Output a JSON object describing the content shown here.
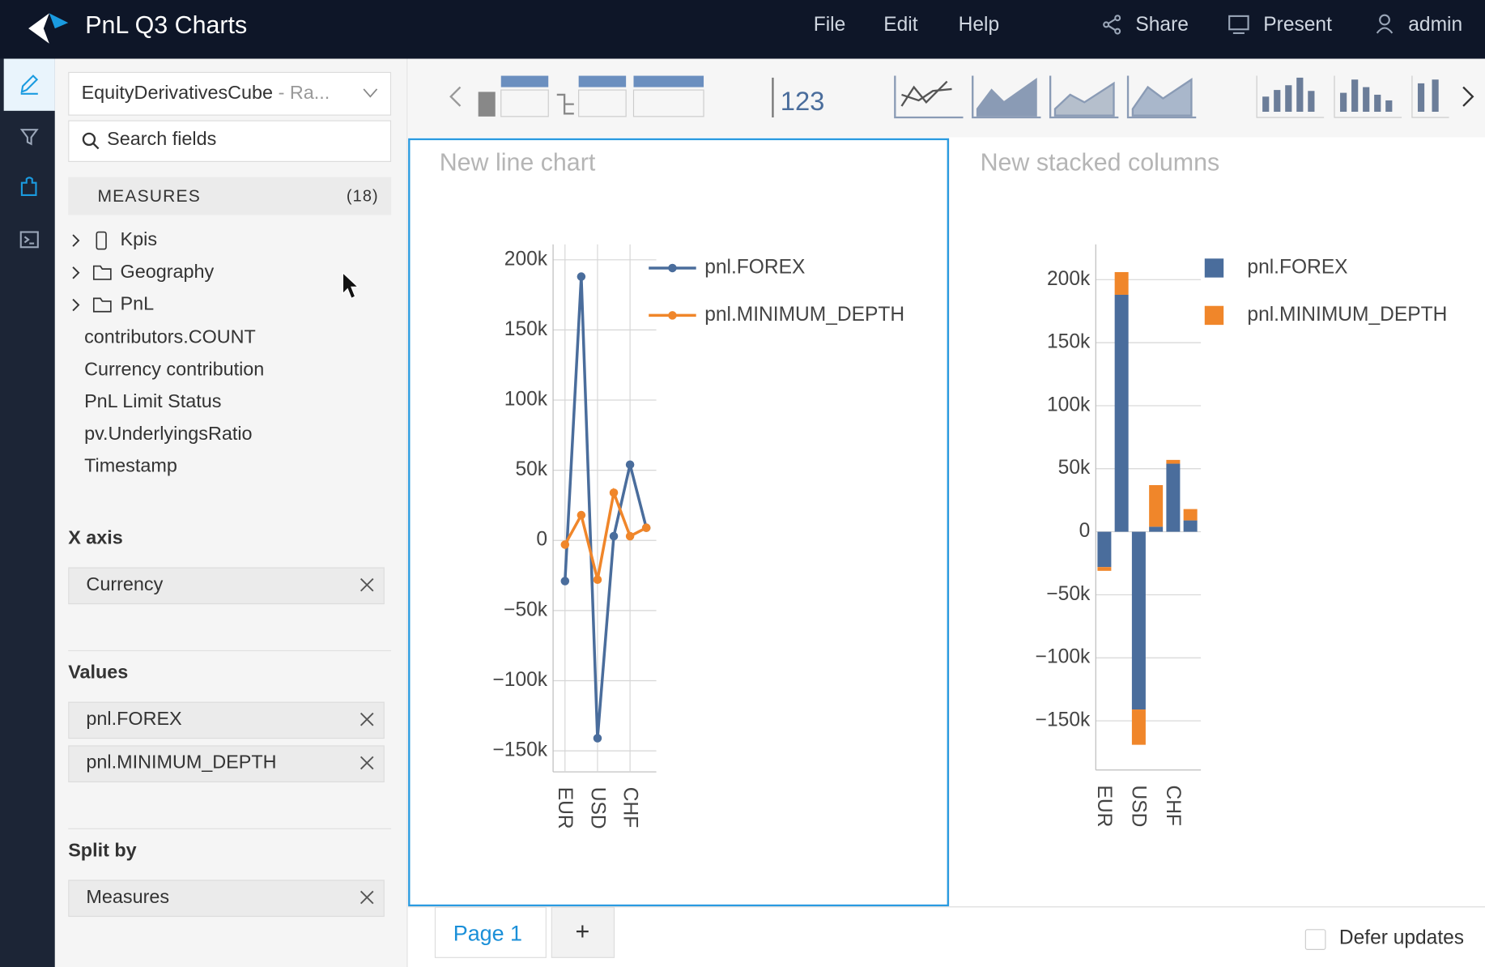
{
  "header": {
    "title": "PnL Q3 Charts",
    "menu": [
      "File",
      "Edit",
      "Help"
    ],
    "actions": [
      "Share",
      "Present",
      "admin"
    ]
  },
  "sidebar": {
    "cube": "EquityDerivativesCube",
    "cube_suffix": " - Ra...",
    "search_placeholder": "Search fields",
    "measures_label": "MEASURES",
    "measures_count": "(18)",
    "folders": [
      "Kpis",
      "Geography",
      "PnL"
    ],
    "fields": [
      "contributors.COUNT",
      "Currency contribution",
      "PnL Limit Status",
      "pv.UnderlyingsRatio",
      "Timestamp"
    ],
    "x_axis_label": "X axis",
    "x_axis": [
      "Currency"
    ],
    "values_label": "Values",
    "values": [
      "pnl.FOREX",
      "pnl.MINIMUM_DEPTH"
    ],
    "split_label": "Split by",
    "split": [
      "Measures"
    ]
  },
  "toolbar": {
    "number_icon": "123"
  },
  "chart_data": [
    {
      "type": "line",
      "title": "New line chart",
      "categories": [
        "EUR",
        null,
        "USD",
        null,
        "CHF",
        null
      ],
      "series": [
        {
          "name": "pnl.FOREX",
          "color": "#4a6d9c",
          "values": [
            -29000,
            188000,
            -141000,
            3000,
            54000,
            9000
          ]
        },
        {
          "name": "pnl.MINIMUM_DEPTH",
          "color": "#f0862a",
          "values": [
            -3000,
            18000,
            -28000,
            34000,
            3000,
            9000
          ]
        }
      ],
      "ylim": [
        -165000,
        211000
      ],
      "yticks": [
        {
          "value": -150000,
          "label": "−150k"
        },
        {
          "value": -100000,
          "label": "−100k"
        },
        {
          "value": -50000,
          "label": "−50k"
        },
        0,
        {
          "value": 50000,
          "label": "50k"
        },
        {
          "value": 100000,
          "label": "100k"
        },
        {
          "value": 150000,
          "label": "150k"
        },
        {
          "value": 200000,
          "label": "200k"
        }
      ],
      "grid": true,
      "legend": "right"
    },
    {
      "type": "bar",
      "stacked": true,
      "title": "New stacked columns",
      "categories": [
        "EUR",
        null,
        "USD",
        null,
        "CHF",
        null
      ],
      "series": [
        {
          "name": "pnl.FOREX",
          "color": "#4a6d9c",
          "values": [
            -28000,
            188000,
            -141000,
            4000,
            54000,
            9000
          ]
        },
        {
          "name": "pnl.MINIMUM_DEPTH",
          "color": "#f0862a",
          "values": [
            -3000,
            18000,
            -28000,
            33000,
            3000,
            9000
          ]
        }
      ],
      "ylim": [
        -189000,
        228000
      ],
      "yticks": [
        {
          "value": -150000,
          "label": "−150k"
        },
        {
          "value": -100000,
          "label": "−100k"
        },
        {
          "value": -50000,
          "label": "−50k"
        },
        0,
        {
          "value": 50000,
          "label": "50k"
        },
        {
          "value": 100000,
          "label": "100k"
        },
        {
          "value": 150000,
          "label": "150k"
        },
        {
          "value": 200000,
          "label": "200k"
        }
      ],
      "grid": true,
      "legend": "right"
    }
  ],
  "footer": {
    "tabs": [
      "Page 1"
    ],
    "add_tab": "+",
    "defer": "Defer updates"
  }
}
